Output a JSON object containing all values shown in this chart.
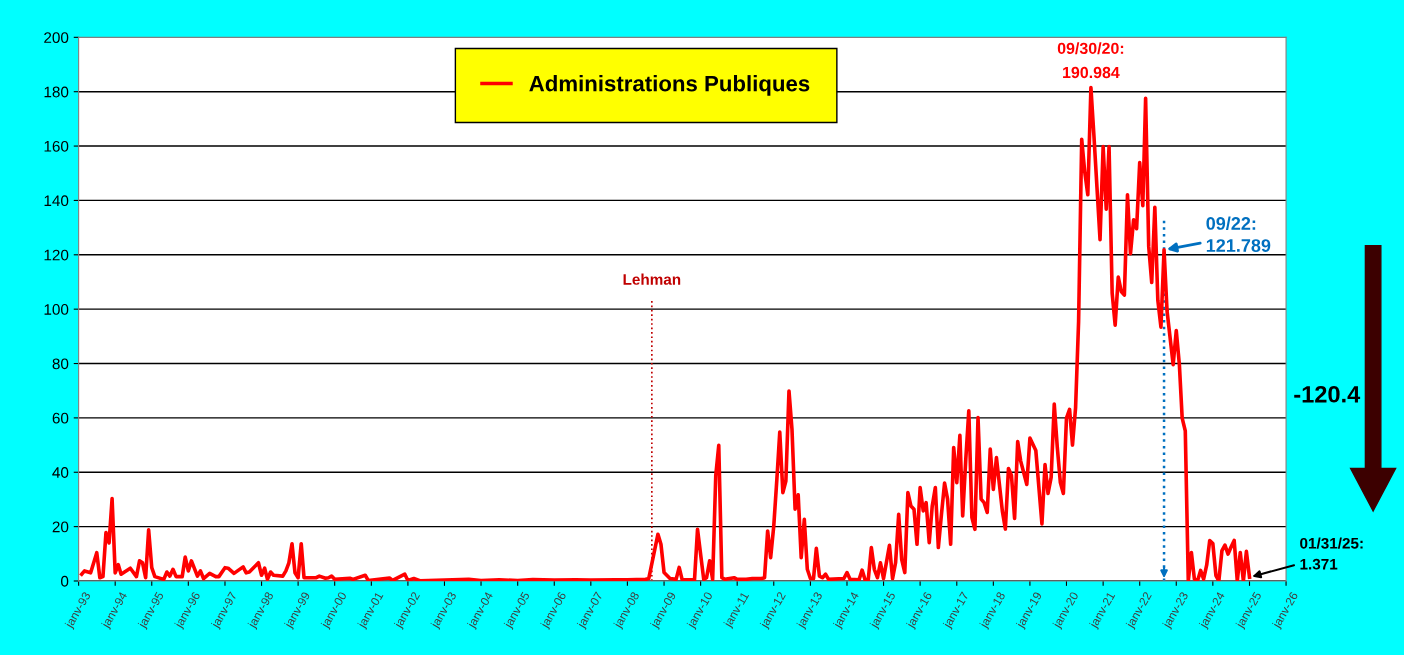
{
  "chart_data": {
    "type": "line",
    "x": [
      "1993-02",
      "1993-03",
      "1993-05",
      "1993-07",
      "1993-08",
      "1993-09",
      "1993-10",
      "1993-11",
      "1993-12",
      "1994-01",
      "1994-02",
      "1994-03",
      "1994-06",
      "1994-08",
      "1994-09",
      "1994-10",
      "1994-11",
      "1994-12",
      "1995-01",
      "1995-02",
      "1995-05",
      "1995-06",
      "1995-07",
      "1995-08",
      "1995-09",
      "1995-11",
      "1995-12",
      "1996-01",
      "1996-02",
      "1996-04",
      "1996-05",
      "1996-06",
      "1996-08",
      "1996-10",
      "1996-11",
      "1997-01",
      "1997-02",
      "1997-04",
      "1997-07",
      "1997-08",
      "1997-09",
      "1997-12",
      "1998-01",
      "1998-02",
      "1998-03",
      "1998-04",
      "1998-05",
      "1998-08",
      "1998-09",
      "1998-10",
      "1998-11",
      "1998-12",
      "1999-01",
      "1999-02",
      "1999-03",
      "1999-07",
      "1999-08",
      "1999-10",
      "1999-11",
      "1999-12",
      "2000-01",
      "2000-06",
      "2000-07",
      "2000-11",
      "2000-12",
      "2001-07",
      "2001-08",
      "2001-12",
      "2002-01",
      "2002-03",
      "2002-05",
      "2003-01",
      "2003-09",
      "2004-01",
      "2004-07",
      "2005-01",
      "2005-06",
      "2006-01",
      "2006-08",
      "2007-01",
      "2007-09",
      "2008-01",
      "2008-07",
      "2008-08",
      "2008-11",
      "2008-12",
      "2009-01",
      "2009-03",
      "2009-05",
      "2009-06",
      "2009-07",
      "2009-11",
      "2009-12",
      "2010-02",
      "2010-03",
      "2010-04",
      "2010-05",
      "2010-06",
      "2010-07",
      "2010-08",
      "2010-09",
      "2010-12",
      "2011-01",
      "2011-04",
      "2011-06",
      "2011-09",
      "2011-10",
      "2011-11",
      "2011-12",
      "2012-01",
      "2012-02",
      "2012-03",
      "2012-04",
      "2012-05",
      "2012-06",
      "2012-07",
      "2012-08",
      "2012-09",
      "2012-10",
      "2012-11",
      "2012-12",
      "2013-01",
      "2013-02",
      "2013-03",
      "2013-04",
      "2013-05",
      "2013-06",
      "2013-07",
      "2013-12",
      "2014-01",
      "2014-02",
      "2014-05",
      "2014-06",
      "2014-07",
      "2014-08",
      "2014-09",
      "2014-10",
      "2014-11",
      "2014-12",
      "2015-01",
      "2015-03",
      "2015-04",
      "2015-05",
      "2015-06",
      "2015-07",
      "2015-08",
      "2015-09",
      "2015-10",
      "2015-11",
      "2015-12",
      "2016-01",
      "2016-02",
      "2016-03",
      "2016-04",
      "2016-05",
      "2016-06",
      "2016-07",
      "2016-08",
      "2016-09",
      "2016-10",
      "2016-11",
      "2016-12",
      "2017-01",
      "2017-02",
      "2017-03",
      "2017-04",
      "2017-05",
      "2017-06",
      "2017-07",
      "2017-08",
      "2017-09",
      "2017-10",
      "2017-11",
      "2017-12",
      "2018-01",
      "2018-02",
      "2018-04",
      "2018-05",
      "2018-06",
      "2018-07",
      "2018-08",
      "2018-09",
      "2018-10",
      "2018-12",
      "2019-01",
      "2019-03",
      "2019-05",
      "2019-06",
      "2019-07",
      "2019-08",
      "2019-09",
      "2019-10",
      "2019-11",
      "2019-12",
      "2020-01",
      "2020-02",
      "2020-03",
      "2020-04",
      "2020-05",
      "2020-06",
      "2020-07",
      "2020-08",
      "2020-09",
      "2020-10",
      "2020-12",
      "2021-01",
      "2021-02",
      "2021-03",
      "2021-04",
      "2021-05",
      "2021-06",
      "2021-07",
      "2021-08",
      "2021-09",
      "2021-10",
      "2021-11",
      "2021-12",
      "2022-01",
      "2022-02",
      "2022-03",
      "2022-04",
      "2022-05",
      "2022-06",
      "2022-07",
      "2022-08",
      "2022-09",
      "2022-10",
      "2022-12",
      "2023-01",
      "2023-02",
      "2023-03",
      "2023-04",
      "2023-05",
      "2023-06",
      "2023-07",
      "2023-08",
      "2023-09",
      "2023-10",
      "2023-11",
      "2023-12",
      "2024-01",
      "2024-02",
      "2024-03",
      "2024-04",
      "2024-05",
      "2024-06",
      "2024-07",
      "2024-08",
      "2024-09",
      "2024-10",
      "2024-11",
      "2024-12",
      "2025-01"
    ],
    "series": [
      {
        "name": "Administrations Publiques",
        "color": "#ff0000",
        "values": [
          2.5,
          3.7,
          3,
          10.4,
          1.2,
          1.6,
          17.8,
          14,
          30.3,
          3,
          6,
          2.5,
          4.7,
          1.6,
          7.4,
          6.7,
          1.2,
          18.8,
          4.9,
          1.6,
          0.6,
          3.3,
          1.8,
          4.3,
          1.6,
          1.6,
          8.8,
          3.7,
          7.4,
          1.8,
          3.7,
          0.9,
          2.8,
          1.6,
          1.6,
          4.9,
          4.7,
          2.8,
          5.2,
          3,
          3.3,
          6.7,
          2.1,
          4.7,
          0.6,
          3.3,
          2.1,
          1.8,
          3.7,
          6.7,
          13.7,
          3,
          1.2,
          13.7,
          1.2,
          1.2,
          1.8,
          1,
          1.2,
          1.8,
          0.6,
          1,
          0.6,
          2.1,
          0.2,
          1.1,
          0.2,
          2.5,
          0.2,
          0.9,
          0.1,
          0.3,
          0.6,
          0.2,
          0.4,
          0.2,
          0.5,
          0.3,
          0.4,
          0.3,
          0.4,
          0.4,
          0.6,
          0.9,
          17.2,
          13.5,
          3.1,
          0.9,
          0.6,
          5,
          0.4,
          0.4,
          19,
          0.6,
          1.2,
          7.4,
          0.6,
          38.7,
          49.9,
          1.2,
          0.6,
          1.2,
          0.6,
          0.6,
          0.9,
          0.9,
          1.2,
          18.4,
          8.6,
          20.2,
          37.4,
          54.8,
          32.5,
          36.8,
          69.9,
          55.8,
          26.4,
          31.7,
          8.6,
          22.7,
          4.3,
          0.9,
          0.9,
          12,
          1.8,
          1.2,
          2.5,
          0.6,
          0.9,
          3.1,
          0.6,
          0.4,
          4,
          0.4,
          0.4,
          12.3,
          4.3,
          1.2,
          6.7,
          0.9,
          13.1,
          0.9,
          6.7,
          24.5,
          8,
          3.1,
          32.5,
          27.6,
          26.4,
          13.5,
          34.4,
          25.8,
          28.8,
          14.1,
          27.6,
          34.4,
          12.3,
          24.5,
          36,
          30.1,
          13.5,
          49.1,
          36.2,
          53.6,
          23.9,
          44.8,
          62.6,
          23.3,
          19,
          60.1,
          30.1,
          28.8,
          25.2,
          48.5,
          33.7,
          45.4,
          25.7,
          19.1,
          41.4,
          38.8,
          23,
          51.3,
          44.1,
          35.5,
          52.6,
          48,
          21,
          42.8,
          32.2,
          38.1,
          65.1,
          49.3,
          36.2,
          32.2,
          59.9,
          63.1,
          50,
          63.8,
          95.4,
          162.5,
          150.6,
          142.1,
          181.5,
          163.8,
          125.6,
          159.8,
          136.8,
          159.8,
          105.9,
          94.1,
          111.8,
          106.5,
          105.2,
          142.1,
          120.4,
          132.9,
          129.6,
          153.9,
          138.1,
          177.6,
          123,
          109.8,
          137.5,
          103.3,
          93.4,
          121.8,
          99.3,
          79.6,
          92.1,
          79.6,
          59.9,
          55.2,
          0,
          10.5,
          0.7,
          0,
          3.9,
          0.7,
          5.9,
          14.9,
          13.8,
          2,
          0,
          11.2,
          13.2,
          9.9,
          12.5,
          14.9,
          0,
          10.5,
          0,
          10.9,
          1.4
        ]
      }
    ],
    "xlim": [
      "1993-01",
      "2026-01"
    ],
    "xticks": [
      {
        "value": "1993-01",
        "label": "janv-93"
      },
      {
        "value": "1994-01",
        "label": "janv-94"
      },
      {
        "value": "1995-01",
        "label": "janv-95"
      },
      {
        "value": "1996-01",
        "label": "janv-96"
      },
      {
        "value": "1997-01",
        "label": "janv-97"
      },
      {
        "value": "1998-01",
        "label": "janv-98"
      },
      {
        "value": "1999-01",
        "label": "janv-99"
      },
      {
        "value": "2000-01",
        "label": "janv-00"
      },
      {
        "value": "2001-01",
        "label": "janv-01"
      },
      {
        "value": "2002-01",
        "label": "janv-02"
      },
      {
        "value": "2003-01",
        "label": "janv-03"
      },
      {
        "value": "2004-01",
        "label": "janv-04"
      },
      {
        "value": "2005-01",
        "label": "janv-05"
      },
      {
        "value": "2006-01",
        "label": "janv-06"
      },
      {
        "value": "2007-01",
        "label": "janv-07"
      },
      {
        "value": "2008-01",
        "label": "janv-08"
      },
      {
        "value": "2009-01",
        "label": "janv-09"
      },
      {
        "value": "2010-01",
        "label": "janv-10"
      },
      {
        "value": "2011-01",
        "label": "janv-11"
      },
      {
        "value": "2012-01",
        "label": "janv-12"
      },
      {
        "value": "2013-01",
        "label": "janv-13"
      },
      {
        "value": "2014-01",
        "label": "janv-14"
      },
      {
        "value": "2015-01",
        "label": "janv-15"
      },
      {
        "value": "2016-01",
        "label": "janv-16"
      },
      {
        "value": "2017-01",
        "label": "janv-17"
      },
      {
        "value": "2018-01",
        "label": "janv-18"
      },
      {
        "value": "2019-01",
        "label": "janv-19"
      },
      {
        "value": "2020-01",
        "label": "janv-20"
      },
      {
        "value": "2021-01",
        "label": "janv-21"
      },
      {
        "value": "2022-01",
        "label": "janv-22"
      },
      {
        "value": "2023-01",
        "label": "janv-23"
      },
      {
        "value": "2024-01",
        "label": "janv-24"
      },
      {
        "value": "2025-01",
        "label": "janv-25"
      },
      {
        "value": "2026-01",
        "label": "janv-26"
      }
    ],
    "ylim": [
      0,
      200
    ],
    "yticks": [
      0,
      20,
      40,
      60,
      80,
      100,
      120,
      140,
      160,
      180,
      200
    ],
    "grid": "y",
    "legend": "top",
    "marker": "none",
    "line_style": "solid",
    "ref_lines": [
      {
        "axis": "x",
        "value": "2008-09",
        "label": "Lehman",
        "color": "#c00000",
        "line_style": "dotted"
      },
      {
        "axis": "x",
        "value": "2022-09",
        "label": null,
        "color": "#0070c0",
        "line_style": "dotted"
      }
    ],
    "annotations": [
      "09/30/20:\n190.984",
      {
        "text": "09/22:\n121.789",
        "x": "2022-09",
        "y": 121.789
      },
      {
        "text": "01/31/25:\n1.371",
        "x": "2025-01",
        "y": 1.371
      },
      "-120.4"
    ]
  }
}
